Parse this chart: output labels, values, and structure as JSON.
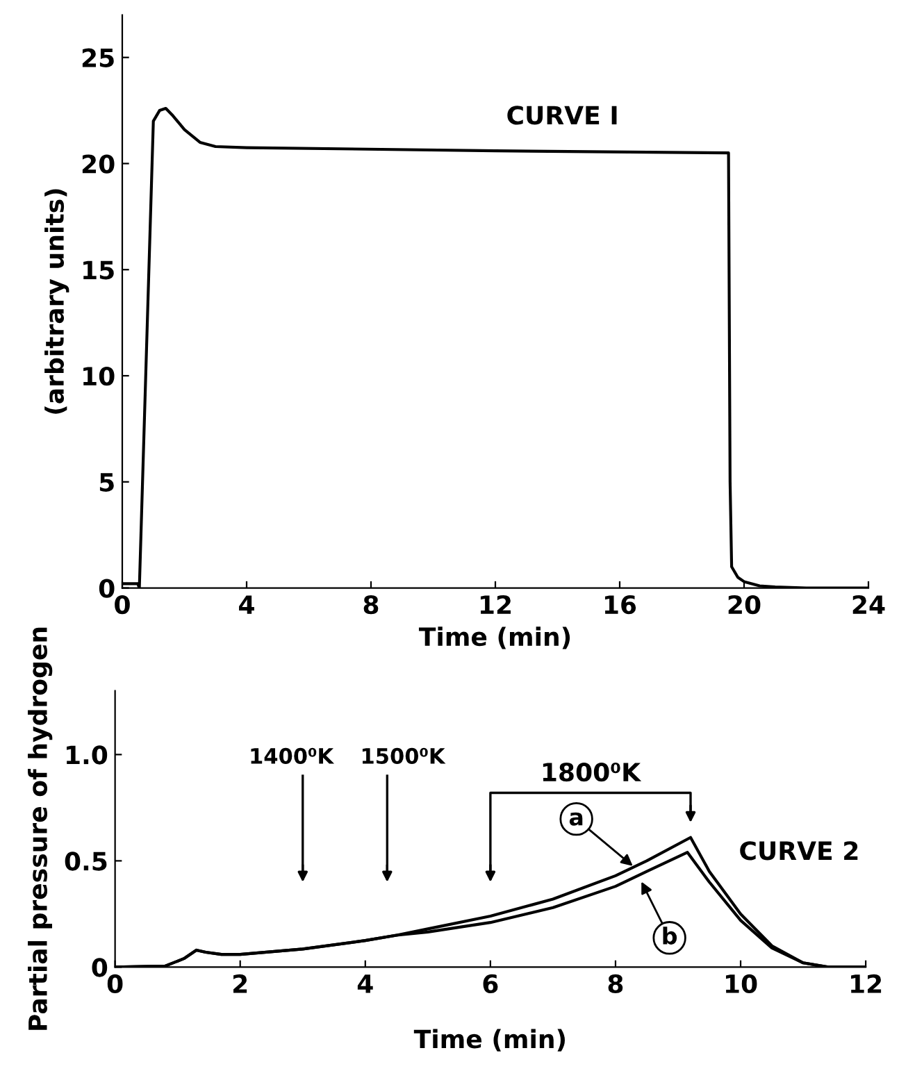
{
  "chart_data": [
    {
      "type": "line",
      "xlabel": "Time (min)",
      "ylabel": "(arbitrary units)",
      "xlim": [
        0,
        24
      ],
      "ylim": [
        0,
        27
      ],
      "xticks": [
        0,
        4,
        8,
        12,
        16,
        20,
        24
      ],
      "yticks": [
        0,
        5,
        10,
        15,
        20,
        25
      ],
      "grid": false,
      "legend": false,
      "marker": "none",
      "line_style": "solid",
      "series": [
        {
          "color": "#000000",
          "x": [
            0,
            0.5,
            0.55,
            1.0,
            1.2,
            1.4,
            1.6,
            2.0,
            2.5,
            3.0,
            4.0,
            12.0,
            19.5,
            19.55,
            19.6,
            19.8,
            20.0,
            20.5,
            21.0,
            22.0,
            24.0
          ],
          "values": [
            0.2,
            0.2,
            0,
            22.0,
            22.5,
            22.6,
            22.3,
            21.6,
            21.0,
            20.8,
            20.75,
            20.6,
            20.5,
            5.0,
            1.0,
            0.5,
            0.3,
            0.1,
            0.05,
            0,
            0
          ]
        }
      ],
      "annotations": [
        "CURVE I"
      ]
    },
    {
      "type": "line",
      "xlabel": "Time (min)",
      "ylabel": "Partial pressure of hydrogen",
      "xlim": [
        0,
        12
      ],
      "ylim": [
        0,
        1.3
      ],
      "xticks": [
        0,
        2,
        4,
        6,
        8,
        10,
        12
      ],
      "yticks": [
        0,
        0.5,
        {
          "value": 1.0,
          "label": "1.0"
        }
      ],
      "grid": false,
      "legend": false,
      "marker": "none",
      "line_style": "solid",
      "series": [
        {
          "color": "#000000",
          "x": [
            0,
            0.8,
            1.1,
            1.3,
            1.45,
            1.7,
            2.0,
            3.0,
            4.0,
            4.5,
            5.0,
            6.0,
            7.0,
            8.0,
            8.5,
            9.2,
            9.5,
            10.0,
            10.5,
            11.0,
            11.4,
            12.0
          ],
          "values": [
            0,
            0.005,
            0.04,
            0.08,
            0.07,
            0.06,
            0.06,
            0.085,
            0.125,
            0.15,
            0.18,
            0.24,
            0.32,
            0.43,
            0.5,
            0.61,
            0.45,
            0.25,
            0.1,
            0.02,
            0,
            0
          ]
        },
        {
          "color": "#000000",
          "x": [
            0,
            0.8,
            1.1,
            1.3,
            1.45,
            1.7,
            2.0,
            3.0,
            4.0,
            4.5,
            5.0,
            6.0,
            7.0,
            8.0,
            8.5,
            9.15,
            9.5,
            10.0,
            10.5,
            11.0,
            11.4,
            12.0
          ],
          "values": [
            0,
            0.005,
            0.04,
            0.08,
            0.07,
            0.06,
            0.06,
            0.085,
            0.125,
            0.15,
            0.165,
            0.21,
            0.28,
            0.38,
            0.45,
            0.54,
            0.4,
            0.22,
            0.09,
            0.02,
            0,
            0
          ]
        }
      ],
      "ref_lines": [
        {
          "axis": "x",
          "value": 3,
          "label": "1400⁰K"
        },
        {
          "axis": "x",
          "value": 4.35,
          "label": "1500⁰K"
        },
        {
          "axis": "x",
          "value": 6,
          "label": "1800⁰K"
        }
      ],
      "annotations": [
        {
          "text": "a",
          "x": 8.3,
          "y": 0.47
        },
        {
          "text": "b",
          "x": 8.4,
          "y": 0.41
        },
        {
          "text": "CURVE 2",
          "x": 9.2,
          "y": 0.61
        }
      ]
    }
  ]
}
